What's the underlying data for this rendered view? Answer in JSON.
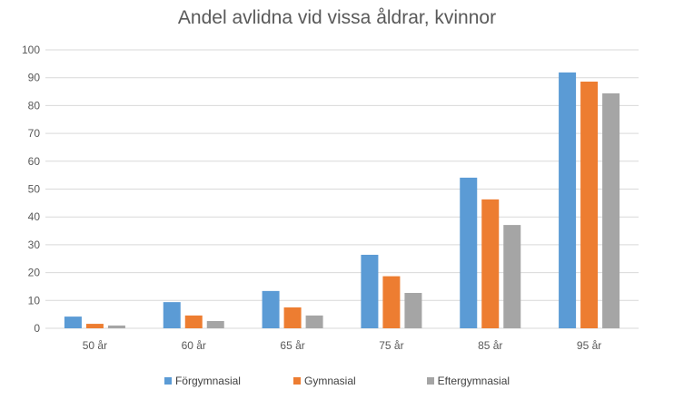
{
  "chart_data": {
    "type": "bar",
    "title": "Andel avlidna vid vissa åldrar, kvinnor",
    "categories": [
      "50 år",
      "60 år",
      "65 år",
      "75 år",
      "85 år",
      "95 år"
    ],
    "series": [
      {
        "name": "Förgymnasial",
        "color": "#5B9BD5",
        "values": [
          4.2,
          9.4,
          13.4,
          26.4,
          54.1,
          91.9
        ]
      },
      {
        "name": "Gymnasial",
        "color": "#ED7D31",
        "values": [
          1.6,
          4.6,
          7.5,
          18.7,
          46.3,
          88.6
        ]
      },
      {
        "name": "Eftergymnasial",
        "color": "#A5A5A5",
        "values": [
          1.0,
          2.6,
          4.6,
          12.7,
          37.1,
          84.4
        ]
      }
    ],
    "ylim": [
      0,
      100
    ],
    "yticks": [
      "0",
      "10",
      "20",
      "30",
      "40",
      "50",
      "60",
      "70",
      "80",
      "90",
      "100"
    ],
    "grid": true,
    "legend_position": "bottom"
  }
}
